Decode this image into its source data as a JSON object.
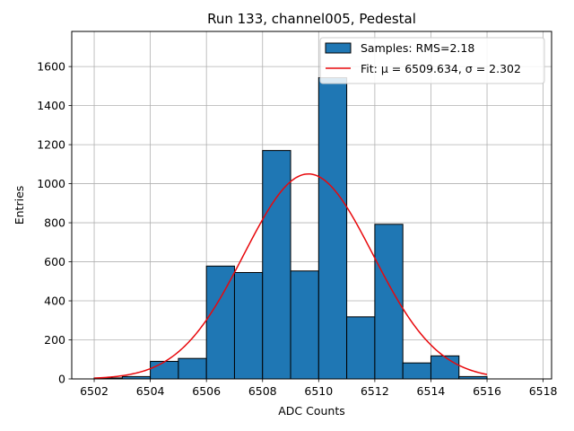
{
  "chart_data": {
    "type": "bar",
    "title": "Run 133, channel005, Pedestal",
    "xlabel": "ADC Counts",
    "ylabel": "Entries",
    "xlim": [
      6501.2,
      6518.3
    ],
    "ylim": [
      0,
      1780
    ],
    "xticks": [
      6502,
      6504,
      6506,
      6508,
      6510,
      6512,
      6514,
      6516,
      6518
    ],
    "yticks": [
      0,
      200,
      400,
      600,
      800,
      1000,
      1200,
      1400,
      1600
    ],
    "grid": true,
    "legend_position": "top-right",
    "bin_edges": [
      6502,
      6503,
      6504,
      6505,
      6506,
      6507,
      6508,
      6509,
      6510,
      6511,
      6512,
      6513,
      6514,
      6515,
      6516
    ],
    "values": [
      5,
      12,
      90,
      105,
      578,
      545,
      1170,
      553,
      1543,
      318,
      792,
      82,
      118,
      12
    ],
    "bar_color": "#1f77b4",
    "fit": {
      "mu": 6509.634,
      "sigma": 2.302,
      "amplitude": 1050,
      "x_range": [
        6502,
        6516
      ],
      "color": "#e8080c"
    },
    "legend": [
      {
        "label": "Samples: RMS=2.18",
        "kind": "patch"
      },
      {
        "label": "Fit: μ = 6509.634, σ = 2.302",
        "kind": "line"
      }
    ]
  }
}
